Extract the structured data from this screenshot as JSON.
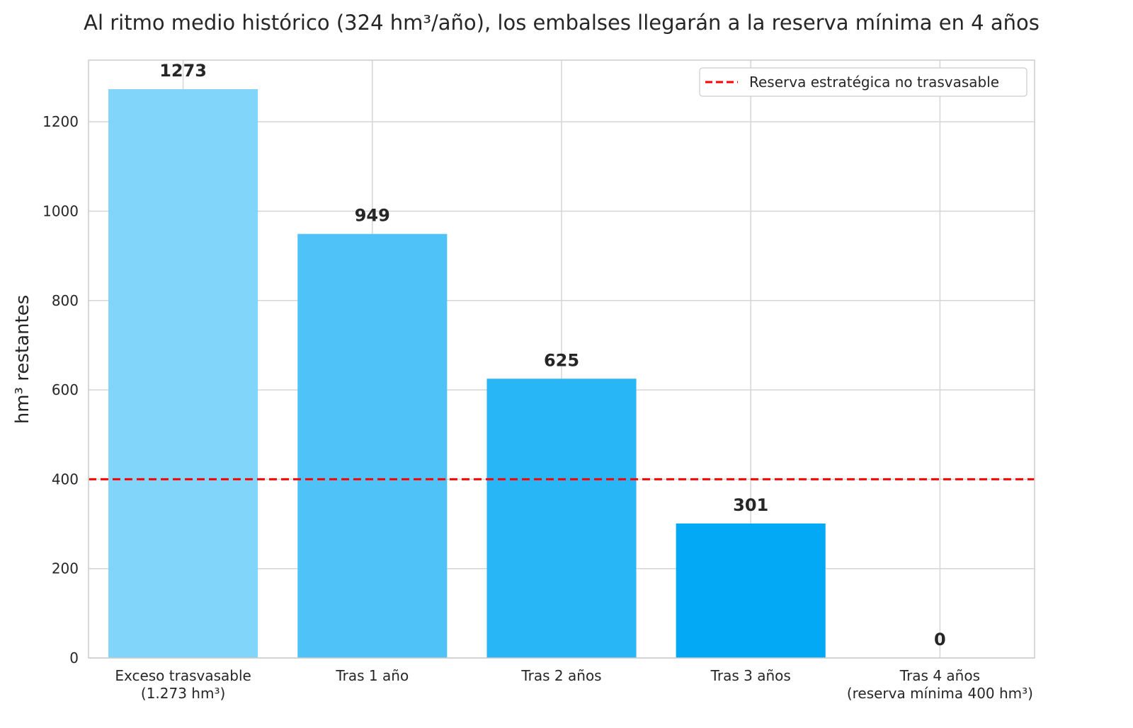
{
  "chart_data": {
    "type": "bar",
    "title": "Al ritmo medio histórico (324 hm³/año), los embalses llegarán a la reserva mínima en 4 años",
    "xlabel": "",
    "ylabel": "hm³ restantes",
    "categories": [
      [
        "Exceso trasvasable",
        "(1.273 hm³)"
      ],
      [
        "Tras 1 año"
      ],
      [
        "Tras 2 años"
      ],
      [
        "Tras 3 años"
      ],
      [
        "Tras 4 años",
        "(reserva mínima 400 hm³)"
      ]
    ],
    "values": [
      1273,
      949,
      625,
      301,
      0
    ],
    "data_labels": [
      "1273",
      "949",
      "625",
      "301",
      "0"
    ],
    "bar_colors": [
      "#81D4FA",
      "#4FC3F7",
      "#29B6F6",
      "#03A9F4",
      "#039BE5"
    ],
    "ylim": [
      0,
      1338
    ],
    "yticks": [
      0,
      200,
      400,
      600,
      800,
      1000,
      1200
    ],
    "grid": true,
    "reference_line": {
      "value": 400,
      "label": "Reserva estratégica no trasvasable",
      "color": "#FF0000",
      "style": "dashed"
    },
    "legend": {
      "placement": "top-right"
    }
  }
}
